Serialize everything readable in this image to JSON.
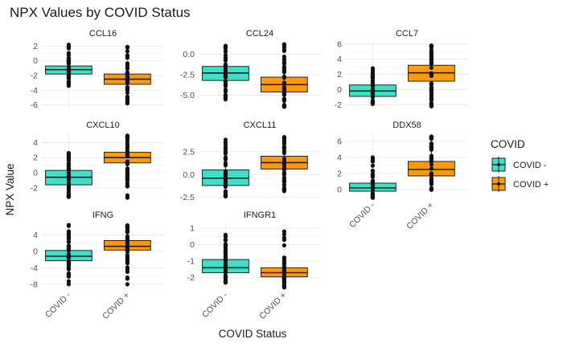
{
  "chart_data": {
    "type": "box",
    "title": "NPX Values by COVID Status",
    "xlabel": "COVID Status",
    "ylabel": "NPX Value",
    "categories": [
      "COVID -",
      "COVID +"
    ],
    "legend": {
      "title": "COVID",
      "position": "right",
      "entries": [
        {
          "label": "COVID -",
          "color": "#40E0C8"
        },
        {
          "label": "COVID +",
          "color": "#FF9A0A"
        }
      ]
    },
    "grid": true,
    "panels": [
      {
        "name": "CCL16",
        "ylim": [
          -6.6,
          2.6
        ],
        "yticks": [
          2,
          0,
          -2,
          -4,
          -6
        ],
        "boxes": [
          {
            "group": "COVID -",
            "q1": -1.8,
            "median": -1.2,
            "q3": -0.7,
            "whisker_low": -2.8,
            "whisker_high": 0.5,
            "range": [
              -3.4,
              2.2
            ]
          },
          {
            "group": "COVID +",
            "q1": -3.2,
            "median": -2.5,
            "q3": -1.8,
            "whisker_low": -5.0,
            "whisker_high": -0.1,
            "range": [
              -5.8,
              1.9
            ]
          }
        ]
      },
      {
        "name": "CCL24",
        "ylim": [
          -6.7,
          1.5
        ],
        "yticks": [
          "0.0",
          "-2.5",
          "-5.0"
        ],
        "boxes": [
          {
            "group": "COVID -",
            "q1": -3.2,
            "median": -2.3,
            "q3": -1.5,
            "whisker_low": -5.0,
            "whisker_high": 0.3,
            "range": [
              -5.5,
              1.0
            ]
          },
          {
            "group": "COVID +",
            "q1": -4.6,
            "median": -3.7,
            "q3": -2.8,
            "whisker_low": -6.2,
            "whisker_high": -0.5,
            "range": [
              -6.4,
              1.2
            ]
          }
        ]
      },
      {
        "name": "CCL7",
        "ylim": [
          -2.6,
          6.3
        ],
        "yticks": [
          6,
          4,
          2,
          0,
          -2
        ],
        "boxes": [
          {
            "group": "COVID -",
            "q1": -0.9,
            "median": -0.2,
            "q3": 0.6,
            "whisker_low": -1.6,
            "whisker_high": 1.9,
            "range": [
              -1.9,
              2.8
            ]
          },
          {
            "group": "COVID +",
            "q1": 1.1,
            "median": 2.2,
            "q3": 3.2,
            "whisker_low": -1.7,
            "whisker_high": 5.6,
            "range": [
              -2.2,
              5.8
            ]
          }
        ]
      },
      {
        "name": "CXCL10",
        "ylim": [
          -3.5,
          5.2
        ],
        "yticks": [
          4,
          2,
          0,
          -2
        ],
        "boxes": [
          {
            "group": "COVID -",
            "q1": -1.6,
            "median": -0.6,
            "q3": 0.3,
            "whisker_low": -3.0,
            "whisker_high": 2.0,
            "range": [
              -3.2,
              2.6
            ]
          },
          {
            "group": "COVID +",
            "q1": 1.3,
            "median": 2.0,
            "q3": 2.7,
            "whisker_low": -1.0,
            "whisker_high": 4.6,
            "range": [
              -3.3,
              4.9
            ]
          }
        ]
      },
      {
        "name": "CXCL11",
        "ylim": [
          -2.7,
          4.5
        ],
        "yticks": [
          "2.5",
          "0.0",
          "-2.5"
        ],
        "boxes": [
          {
            "group": "COVID -",
            "q1": -1.2,
            "median": -0.4,
            "q3": 0.5,
            "whisker_low": -2.3,
            "whisker_high": 2.8,
            "range": [
              -2.4,
              3.8
            ]
          },
          {
            "group": "COVID +",
            "q1": 0.6,
            "median": 1.3,
            "q3": 2.0,
            "whisker_low": -1.5,
            "whisker_high": 3.9,
            "range": [
              -1.8,
              4.1
            ]
          }
        ]
      },
      {
        "name": "DDX58",
        "ylim": [
          -1.2,
          7.0
        ],
        "yticks": [
          6,
          4,
          2,
          0
        ],
        "boxes": [
          {
            "group": "COVID -",
            "q1": -0.2,
            "median": 0.2,
            "q3": 0.8,
            "whisker_low": -1.0,
            "whisker_high": 2.5,
            "range": [
              -1.0,
              4.0
            ]
          },
          {
            "group": "COVID +",
            "q1": 1.7,
            "median": 2.5,
            "q3": 3.5,
            "whisker_low": 0.0,
            "whisker_high": 6.3,
            "range": [
              0.0,
              6.6
            ]
          }
        ]
      },
      {
        "name": "IFNG",
        "ylim": [
          -9.2,
          6.8
        ],
        "yticks": [
          4,
          0,
          -4,
          -8
        ],
        "boxes": [
          {
            "group": "COVID -",
            "q1": -2.3,
            "median": -1.2,
            "q3": 0.2,
            "whisker_low": -5.5,
            "whisker_high": 4.0,
            "range": [
              -8.0,
              6.4
            ]
          },
          {
            "group": "COVID +",
            "q1": 0.3,
            "median": 1.2,
            "q3": 2.6,
            "whisker_low": -3.4,
            "whisker_high": 5.6,
            "range": [
              -8.0,
              6.3
            ]
          }
        ]
      },
      {
        "name": "IFNGR1",
        "ylim": [
          -2.7,
          1.3
        ],
        "yticks": [
          1,
          0,
          -1,
          -2
        ],
        "boxes": [
          {
            "group": "COVID -",
            "q1": -1.7,
            "median": -1.4,
            "q3": -0.9,
            "whisker_low": -2.2,
            "whisker_high": 0.1,
            "range": [
              -2.3,
              0.6
            ]
          },
          {
            "group": "COVID +",
            "q1": -1.95,
            "median": -1.7,
            "q3": -1.4,
            "whisker_low": -2.5,
            "whisker_high": -0.8,
            "range": [
              -2.6,
              0.8
            ]
          }
        ]
      }
    ]
  }
}
